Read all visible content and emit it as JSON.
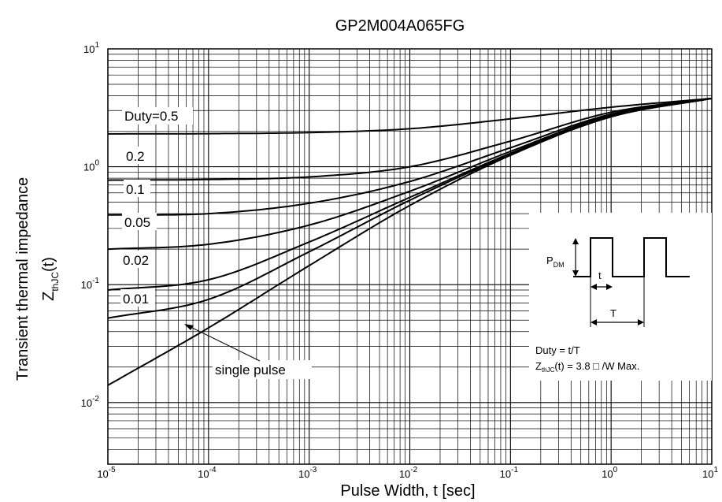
{
  "chart_data": {
    "type": "line",
    "title": "GP2M004A065FG",
    "xlabel": "Pulse Width, t [sec]",
    "ylabel": {
      "line1": "Transient thermal impedance",
      "z": "Z",
      "sub": "thJC",
      "tail": "(t)"
    },
    "x_scale": "log",
    "y_scale": "log",
    "xlim": [
      1e-05,
      10
    ],
    "ylim": [
      0.003,
      10
    ],
    "grid": true,
    "x_ticks": [
      {
        "base": "10",
        "exp": "-5"
      },
      {
        "base": "10",
        "exp": "-4"
      },
      {
        "base": "10",
        "exp": "-3"
      },
      {
        "base": "10",
        "exp": "-2"
      },
      {
        "base": "10",
        "exp": "-1"
      },
      {
        "base": "10",
        "exp": "0"
      },
      {
        "base": "10",
        "exp": "1"
      }
    ],
    "y_ticks": [
      {
        "value": 10,
        "base": "10",
        "exp": "1"
      },
      {
        "value": 1,
        "base": "10",
        "exp": "0"
      },
      {
        "value": 0.1,
        "base": "10",
        "exp": "-1"
      },
      {
        "value": 0.01,
        "base": "10",
        "exp": "-2"
      }
    ],
    "series": [
      {
        "name": "Duty=0.5",
        "x": [
          1e-05,
          0.0001,
          0.001,
          0.01,
          0.1,
          1,
          10
        ],
        "y": [
          1.9,
          1.91,
          1.95,
          2.1,
          2.55,
          3.2,
          3.8
        ]
      },
      {
        "name": "0.2",
        "x": [
          1e-05,
          0.0001,
          0.001,
          0.01,
          0.1,
          1,
          10
        ],
        "y": [
          0.77,
          0.78,
          0.82,
          1.0,
          1.65,
          2.9,
          3.8
        ]
      },
      {
        "name": "0.1",
        "x": [
          1e-05,
          0.0001,
          0.001,
          0.01,
          0.1,
          1,
          10
        ],
        "y": [
          0.39,
          0.4,
          0.49,
          0.75,
          1.45,
          2.8,
          3.8
        ]
      },
      {
        "name": "0.05",
        "x": [
          1e-05,
          0.0001,
          0.001,
          0.01,
          0.1,
          1,
          10
        ],
        "y": [
          0.2,
          0.22,
          0.32,
          0.62,
          1.35,
          2.75,
          3.8
        ]
      },
      {
        "name": "0.02",
        "x": [
          1e-05,
          0.0001,
          0.001,
          0.01,
          0.1,
          1,
          10
        ],
        "y": [
          0.09,
          0.11,
          0.23,
          0.55,
          1.3,
          2.7,
          3.8
        ]
      },
      {
        "name": "0.01",
        "x": [
          1e-05,
          0.0001,
          0.001,
          0.01,
          0.1,
          1,
          10
        ],
        "y": [
          0.052,
          0.075,
          0.19,
          0.52,
          1.27,
          2.68,
          3.8
        ]
      },
      {
        "name": "single pulse",
        "x": [
          1e-05,
          0.0001,
          0.001,
          0.01,
          0.1,
          1,
          10
        ],
        "y": [
          0.014,
          0.043,
          0.145,
          0.47,
          1.25,
          2.65,
          3.8
        ]
      }
    ],
    "annotations": {
      "duty_labels": [
        "Duty=0.5",
        "0.2",
        "0.1",
        "0.05",
        "0.02",
        "0.01"
      ],
      "single_pulse": "single pulse",
      "inset": {
        "p_label": "P",
        "p_sub": "DM",
        "t_label": "t",
        "T_label": "T",
        "duty_formula": "Duty = t/T",
        "z_main": "Z",
        "z_sub": "thJC",
        "z_rest": "(t) = 3.8 □ /W Max."
      }
    }
  }
}
